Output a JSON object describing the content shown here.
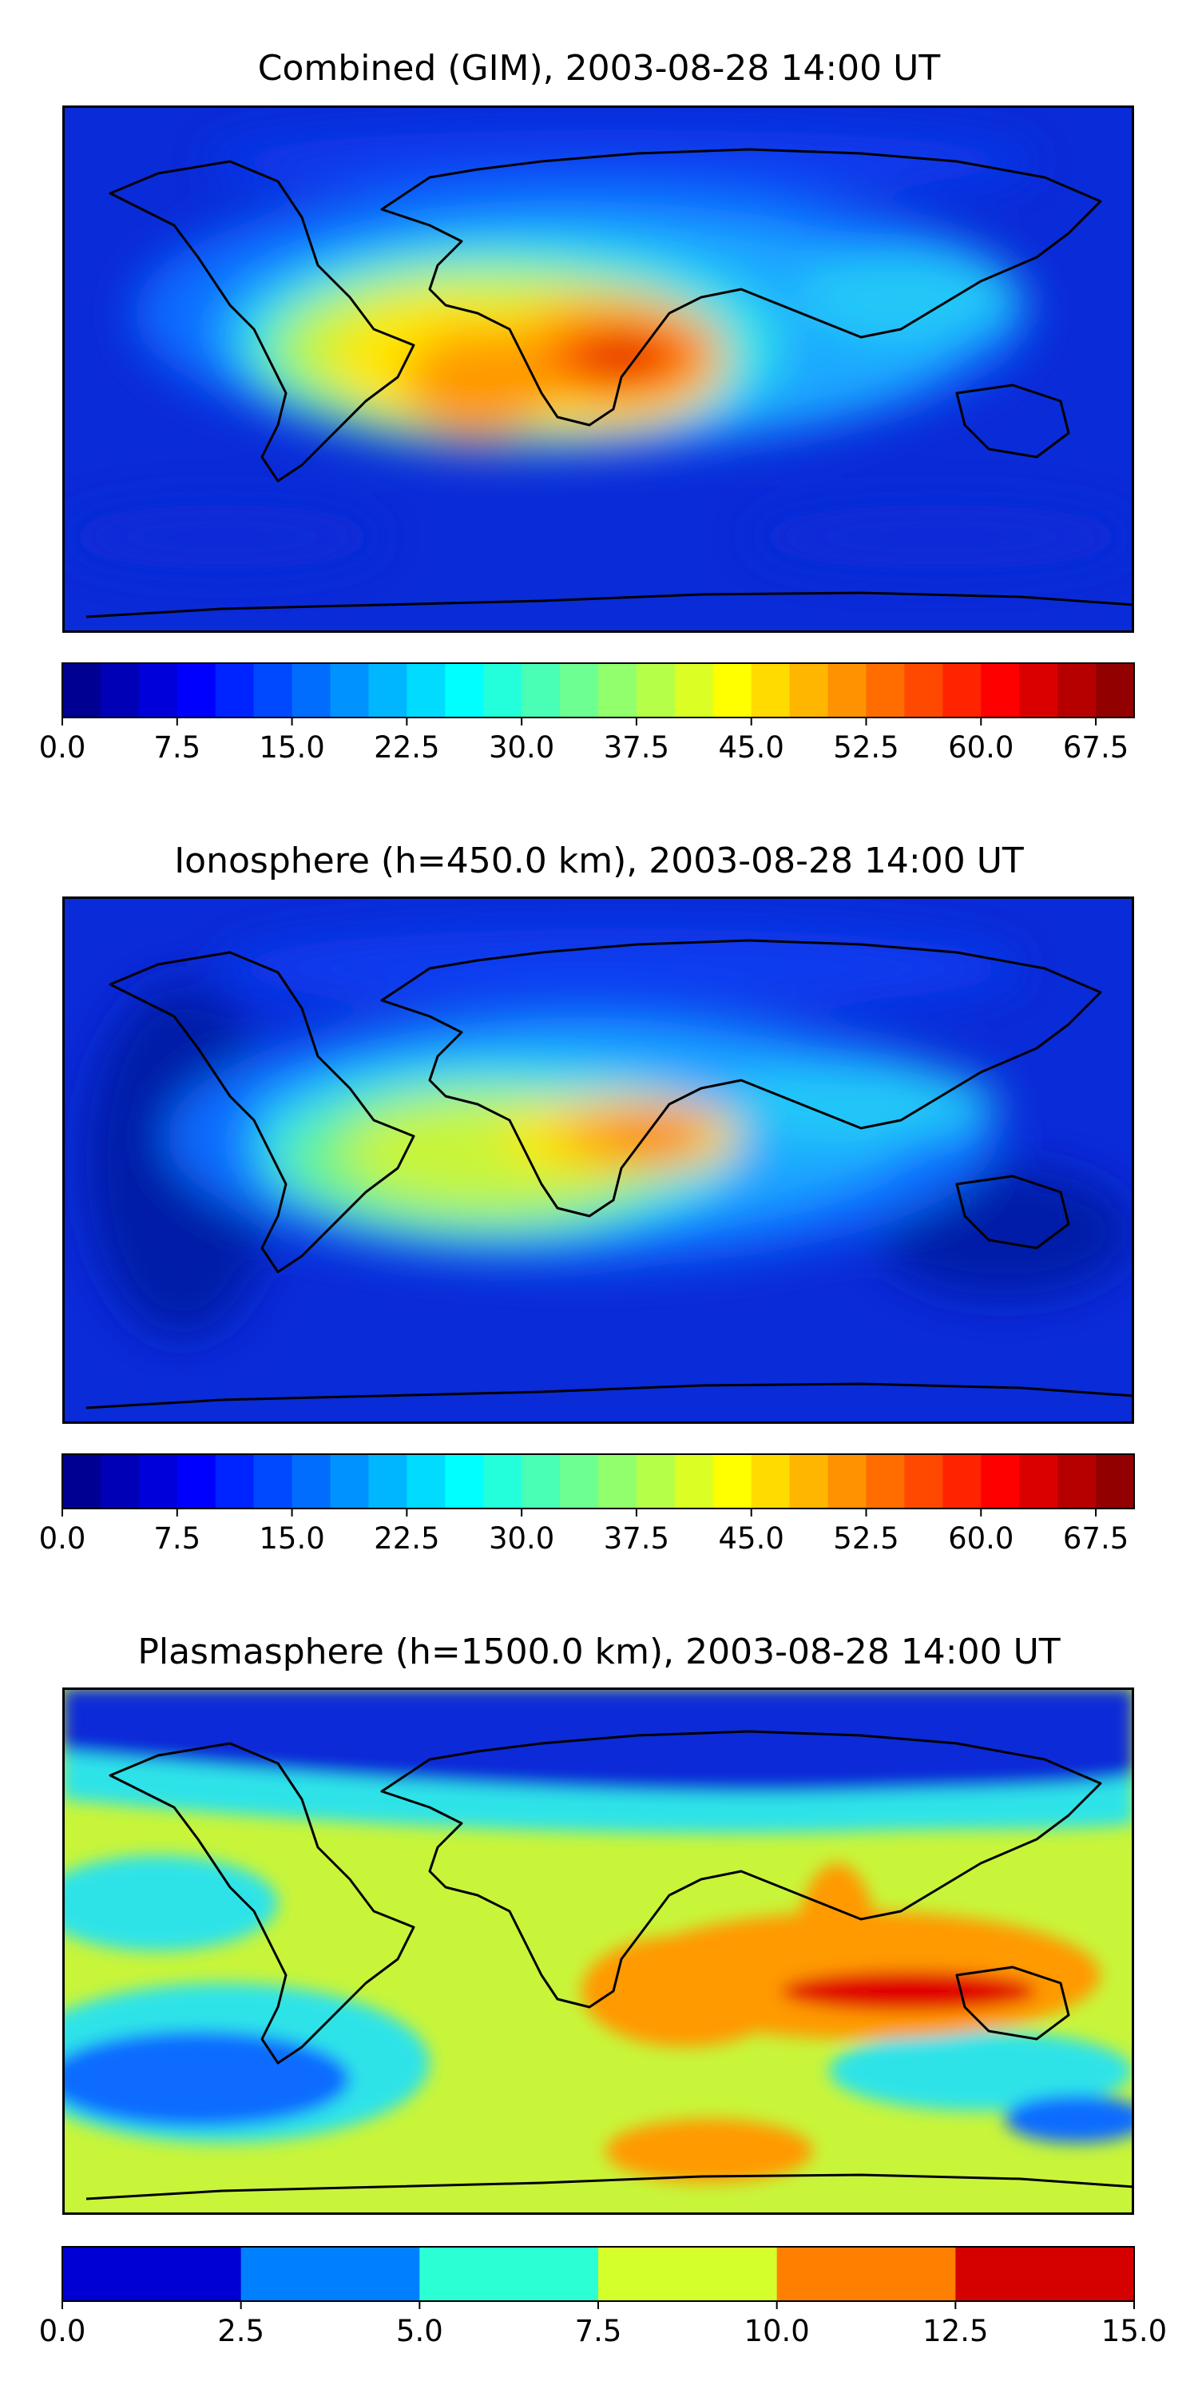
{
  "panels": [
    {
      "title": "Combined (GIM), 2003-08-28 14:00 UT",
      "colorbar": {
        "min": 0.0,
        "max": 70.0,
        "levels": 28,
        "colormap": "jet",
        "ticks": [
          "0.0",
          "7.5",
          "15.0",
          "22.5",
          "30.0",
          "37.5",
          "45.0",
          "52.5",
          "60.0",
          "67.5"
        ]
      }
    },
    {
      "title": "Ionosphere  (h=450.0 km), 2003-08-28 14:00 UT",
      "colorbar": {
        "min": 0.0,
        "max": 70.0,
        "levels": 28,
        "colormap": "jet",
        "ticks": [
          "0.0",
          "7.5",
          "15.0",
          "22.5",
          "30.0",
          "37.5",
          "45.0",
          "52.5",
          "60.0",
          "67.5"
        ]
      }
    },
    {
      "title": "Plasmasphere (h=1500.0 km), 2003-08-28 14:00 UT",
      "colorbar": {
        "min": 0.0,
        "max": 15.0,
        "levels": 6,
        "colormap": "jet",
        "ticks": [
          "0.0",
          "2.5",
          "5.0",
          "7.5",
          "10.0",
          "12.5",
          "15.0"
        ]
      }
    }
  ]
}
